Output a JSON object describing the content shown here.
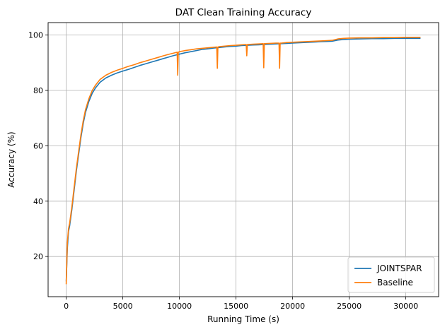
{
  "chart_data": {
    "type": "line",
    "title": "DAT Clean Training Accuracy",
    "xlabel": "Running Time (s)",
    "ylabel": "Accuracy (%)",
    "xlim": [
      -1600,
      32900
    ],
    "ylim": [
      5.5,
      104.5
    ],
    "xticks": [
      0,
      5000,
      10000,
      15000,
      20000,
      25000,
      30000
    ],
    "yticks": [
      20,
      40,
      60,
      80,
      100
    ],
    "grid": true,
    "legend_position": "lower-right",
    "series": [
      {
        "name": "JOINTSPAR",
        "color": "#1f77b4",
        "x": [
          0,
          100,
          200,
          300,
          500,
          700,
          900,
          1100,
          1300,
          1500,
          1700,
          2000,
          2300,
          2600,
          3000,
          3500,
          4000,
          4500,
          5000,
          5500,
          6000,
          6500,
          7000,
          7500,
          8000,
          8500,
          9000,
          9500,
          10000,
          10500,
          11000,
          11500,
          12000,
          12500,
          13000,
          13500,
          14000,
          14500,
          15000,
          15500,
          16000,
          16500,
          17000,
          17500,
          18000,
          18500,
          19000,
          19500,
          20000,
          20500,
          21000,
          21500,
          22000,
          22500,
          23000,
          23500,
          24000,
          24500,
          25000,
          26000,
          27000,
          28000,
          29000,
          30000,
          31000,
          31300
        ],
        "y": [
          11,
          23,
          29,
          31,
          37,
          44,
          51,
          57,
          63,
          68,
          72,
          76,
          79,
          81,
          83,
          84.5,
          85.5,
          86.3,
          87,
          87.6,
          88.3,
          89,
          89.6,
          90.2,
          90.8,
          91.4,
          92,
          92.6,
          93.1,
          93.6,
          94,
          94.4,
          94.8,
          95,
          95.3,
          95.5,
          95.7,
          95.9,
          96,
          96.2,
          96.3,
          96.4,
          96.5,
          96.6,
          96.7,
          96.8,
          96.9,
          97,
          97.1,
          97.2,
          97.3,
          97.4,
          97.5,
          97.6,
          97.7,
          97.8,
          98.2,
          98.4,
          98.5,
          98.6,
          98.7,
          98.7,
          98.8,
          98.8,
          98.8,
          98.8
        ]
      },
      {
        "name": "Baseline",
        "color": "#ff7f0e",
        "x": [
          0,
          100,
          200,
          300,
          500,
          700,
          900,
          1100,
          1300,
          1500,
          1700,
          2000,
          2300,
          2600,
          3000,
          3500,
          4000,
          4500,
          5000,
          5500,
          6000,
          6500,
          7000,
          7500,
          8000,
          8500,
          9000,
          9500,
          9800,
          9850,
          9900,
          10000,
          10500,
          11000,
          11500,
          12000,
          12500,
          13000,
          13300,
          13350,
          13400,
          13500,
          14000,
          14500,
          15000,
          15500,
          15900,
          15950,
          16000,
          16500,
          17000,
          17400,
          17450,
          17500,
          18000,
          18500,
          18800,
          18850,
          18900,
          19000,
          19500,
          20000,
          20500,
          21000,
          21500,
          22000,
          22500,
          23000,
          23500,
          24000,
          24500,
          25000,
          26000,
          27000,
          28000,
          29000,
          30000,
          31000,
          31300
        ],
        "y": [
          10,
          25,
          30,
          32,
          38,
          45,
          52,
          58,
          64,
          69,
          73,
          77,
          80,
          82,
          84,
          85.5,
          86.5,
          87.3,
          88,
          88.7,
          89.3,
          90,
          90.6,
          91.2,
          91.8,
          92.4,
          93,
          93.5,
          93.8,
          85.5,
          93.8,
          94,
          94.4,
          94.7,
          95,
          95.2,
          95.4,
          95.6,
          95.7,
          88,
          95.7,
          95.8,
          96,
          96.2,
          96.3,
          96.5,
          96.6,
          92.5,
          96.6,
          96.7,
          96.8,
          96.9,
          88.2,
          96.9,
          97,
          97.1,
          97.1,
          88,
          97.1,
          97.1,
          97.3,
          97.4,
          97.5,
          97.6,
          97.7,
          97.8,
          97.9,
          98,
          98.1,
          98.6,
          98.8,
          98.9,
          99,
          99,
          99.1,
          99.1,
          99.2,
          99.2,
          99.2
        ]
      }
    ]
  }
}
